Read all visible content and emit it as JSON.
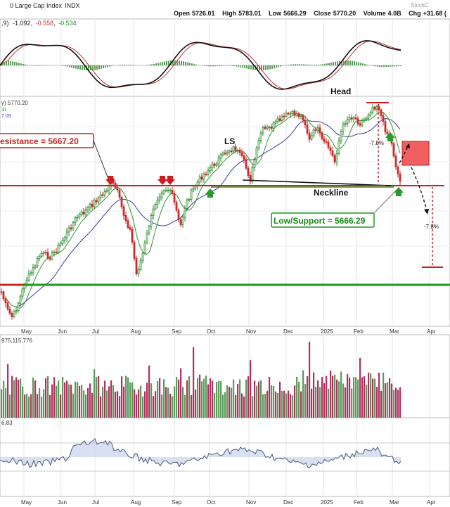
{
  "header": {
    "title": "0 Large Cap Index",
    "exchange": "INDX",
    "watermark": "StockC",
    "open_label": "Open",
    "open_value": "5726.01",
    "high_label": "High",
    "high_value": "5783.01",
    "low_label": "Low",
    "low_value": "5666.29",
    "close_label": "Close",
    "close_value": "5770.20",
    "volume_label": "Volume",
    "volume_value": "4.0B",
    "change_label": "Chg",
    "change_value": "+31.68 ("
  },
  "macd_panel": {
    "label_prefix": ",9)",
    "v1": "-1.092",
    "v2": "-0.558",
    "v3": "-0.534"
  },
  "price_panel": {
    "label_main": "y) 5770.20",
    "label_sub1": "31",
    "label_sub2": "7.05"
  },
  "annotations": {
    "resistance": "esistance = 5667.20",
    "support": "Low/Support = 5666.29",
    "neckline": "Neckline",
    "head": "Head",
    "ls": "LS",
    "pct_down_top": "-7.8%",
    "pct_down_right": "-7.8%"
  },
  "volume_panel": {
    "label": "975,115,776"
  },
  "rsi_panel": {
    "label": "6.83"
  },
  "x_axis": {
    "months": [
      "May",
      "Jun",
      "Jul",
      "Aug",
      "Sep",
      "Oct",
      "Nov",
      "Dec",
      "2025",
      "Feb",
      "Mar",
      "Apr"
    ]
  },
  "colors": {
    "resistance": "#cc1e1e",
    "support_line": "#1a9a1a",
    "up_candle": "#2a8a2a",
    "down_candle": "#cc2a2a",
    "ma_short": "#2a9a2a",
    "ma_long": "#3a3aa0",
    "target_box": "#ee4444"
  },
  "chart_data": {
    "type": "line",
    "title": "0 Large Cap Index",
    "x": [
      "May",
      "Jun",
      "Jul",
      "Aug",
      "Sep",
      "Oct",
      "Nov",
      "Dec",
      "2025",
      "Feb",
      "Mar"
    ],
    "series": [
      {
        "values": [
          5100,
          5350,
          5600,
          5420,
          5600,
          5750,
          5800,
          6050,
          5900,
          6080,
          5770
        ]
      }
    ],
    "resistance_level": 5667.2,
    "support_level": 5666.29,
    "target_pct": -7.8,
    "legend": "none"
  }
}
